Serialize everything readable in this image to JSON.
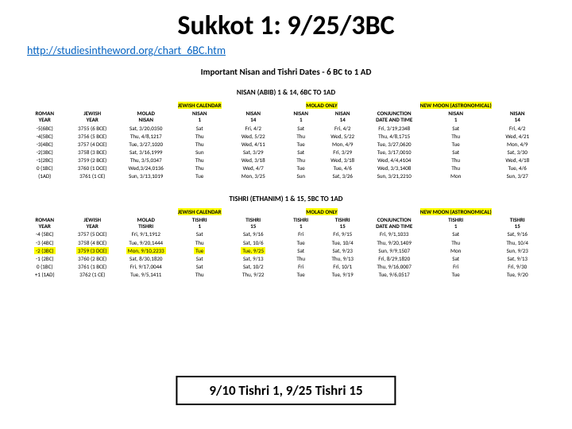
{
  "title": "Sukkot 1: 9/25/3BC",
  "url": "http://studiesintheword.org/chart_6BC.htm",
  "subtitle": "Important Nisan and Tishri Dates - 6 BC to 1 AD",
  "nisan": {
    "header": "NISAN (ABIB) 1 & 14, 6BC TO 1AD",
    "columns_main": [
      "ROMAN\nYEAR",
      "JEWISH\nYEAR"
    ],
    "group1": {
      "title": "JEWISH CALENDAR",
      "cols": [
        "MOLAD\nNISAN",
        "NISAN\n1",
        "NISAN\n14"
      ]
    },
    "group2": {
      "title": "MOLAD ONLY",
      "cols": [
        "NISAN\n1",
        "NISAN\n14"
      ]
    },
    "group3": {
      "title": "NEW MOON (ASTRONOMICAL)",
      "cols": [
        "CONJUNCTION\nDATE AND TIME",
        "NISAN\n1",
        "NISAN\n14"
      ]
    },
    "rows": [
      [
        "-5(6BC)",
        "3755 (6 BCE)",
        "Sat, 3/20,0350",
        "Sat",
        "Fri, 4/2",
        "Sat",
        "Fri, 4/2",
        "Fri, 3/19,2348",
        "Sat",
        "Fri, 4/2"
      ],
      [
        "-4(5BC)",
        "3756 (5 BCE)",
        "Thu, 4/8,1217",
        "Thu",
        "Wed, 5/22",
        "Thu",
        "Wed, 5/22",
        "Thu, 4/8,1715",
        "Thu",
        "Wed, 4/21"
      ],
      [
        "-3(4BC)",
        "3757 (4 DCE)",
        "Tue, 3/27,1020",
        "Thu",
        "Wed, 4/11",
        "Tue",
        "Mon, 4/9",
        "Tue, 3/27,0620",
        "Tue",
        "Mon, 4/9"
      ],
      [
        "-2(3BC)",
        "3758 (3 BCE)",
        "Sat, 3/16,1999",
        "Sun",
        "Sat, 3/29",
        "Sat",
        "Fri, 3/29",
        "Tue, 3/17,0010",
        "Sat",
        "Sat, 3/30"
      ],
      [
        "-1(2BC)",
        "3759 (2 BCE)",
        "Thu, 3/5,0347",
        "Thu",
        "Wed, 3/18",
        "Thu",
        "Wed, 3/18",
        "Wed, 4/4,4104",
        "Thu",
        "Wed, 4/18"
      ],
      [
        "0 (1BC)",
        "3760 (1 DCE)",
        "Wed,3/24,0136",
        "Thu",
        "Wed, 4/7",
        "Tue",
        "Tue, 4/6",
        "Wed, 3/3,1408",
        "Thu",
        "Tue, 4/6"
      ],
      [
        "(1AD)",
        "3761 (1 CE)",
        "Sun, 3/13,1019",
        "Tue",
        "Mon, 3/25",
        "Sun",
        "Sat, 3/26",
        "Sun, 3/21,2210",
        "Mon",
        "Sun, 3/27"
      ]
    ]
  },
  "tishri": {
    "header": "TISHRI (ETHANIM) 1 & 15, 5BC TO 1AD",
    "columns_main": [
      "ROMAN\nYEAR",
      "JEWISH\nYEAR"
    ],
    "group1": {
      "title": "JEWISH CALENDAR",
      "cols": [
        "MOLAD\nTISHRI",
        "TISHRI\n1",
        "TISHRI\n15"
      ]
    },
    "group2": {
      "title": "MOLAD ONLY",
      "cols": [
        "TISHRI\n1",
        "TISHRI\n15"
      ]
    },
    "group3": {
      "title": "NEW MOON (ASTRONOMICAL)",
      "cols": [
        "CONJUNCTION\nDATE AND TIME",
        "TISHRI\n1",
        "TISHRI\n15"
      ]
    },
    "rows": [
      [
        "-4 (5BC)",
        "3757 (5 DCE)",
        "Fri, 9/1,1912",
        "Sat",
        "Sat, 9/16",
        "Fri",
        "Fri, 9/15",
        "Fri, 9/1,1033",
        "Sat",
        "Sat, 9/16"
      ],
      [
        "-3 (4BC)",
        "3758 (4 BCE)",
        "Tue, 9/20,1444",
        "Thu",
        "Sat, 10/6",
        "Tue",
        "Tue, 10/4",
        "Thu, 9/20,1409",
        "Thu",
        "Thu, 10/4"
      ],
      [
        "-2 (3BC)",
        "3759 (3 DCE)",
        "Mon, 9/10,2233",
        "Tue",
        "Tue, 9/25",
        "Sat",
        "Sat, 9/23",
        "Sun, 9/9,1507",
        "Mon",
        "Sun, 9/23"
      ],
      [
        "-1 (2BC)",
        "3760 (2 BCE)",
        "Sat, 8/30,1820",
        "Sat",
        "Sat, 9/13",
        "Thu",
        "Thu, 9/13",
        "Fri, 8/29,1820",
        "Sat",
        "Sat, 9/13"
      ],
      [
        "0   (1BC)",
        "3761 (1 BCE)",
        "Fri, 9/17,0044",
        "Sat",
        "Sat, 10/2",
        "Fri",
        "Fri, 10/1",
        "Thu, 9/16,0007",
        "Fri",
        "Fri, 9/30"
      ],
      [
        "+1 (1AD)",
        "3762 (1 CE)",
        "Tue, 9/5,1411",
        "Thu",
        "Thu, 9/22",
        "Tue",
        "Tue, 9/19",
        "Tue, 9/6,0517",
        "Tue",
        "Tue, 9/20"
      ]
    ],
    "highlight_row_index": 2,
    "highlight_cells": [
      0,
      1,
      2,
      3,
      4
    ]
  },
  "footer": "9/10 Tishri 1, 9/25 Tishri 15"
}
